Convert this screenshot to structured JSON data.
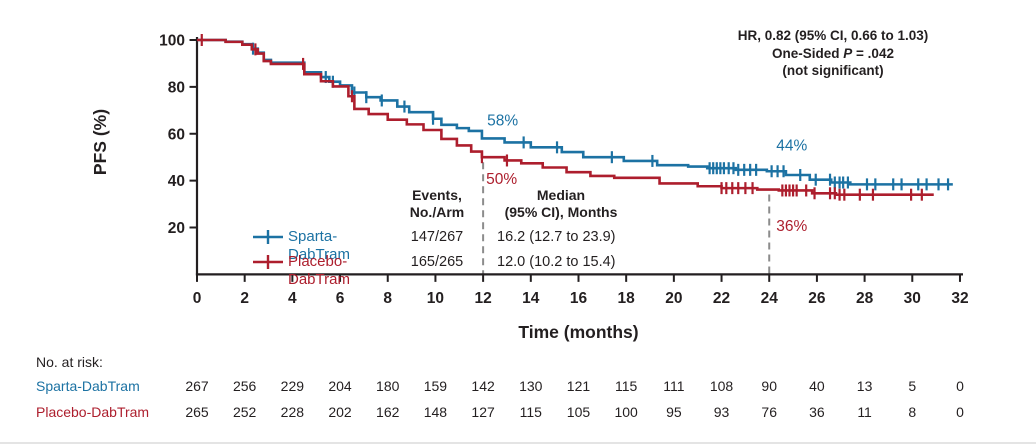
{
  "colors": {
    "sparta_blue": "#1c72a3",
    "placebo_red": "#ad1e2d",
    "dashed_gray": "#8c8c8c",
    "axis_text": "#231f20"
  },
  "figure": {
    "annotation": {
      "line1": "HR, 0.82 (95% CI, 0.66 to 1.03)",
      "line2_prefix": "One-Sided ",
      "line2_italic": "P",
      "line2_suffix": " = .042",
      "line3": "(not significant)"
    },
    "legend": {
      "events_header_line1": "Events,",
      "events_header_line2": "No./Arm",
      "median_header_line1": "Median",
      "median_header_line2": "(95% CI), Months",
      "rows": [
        {
          "name": "Sparta-DabTram",
          "events": "147/267",
          "median": "16.2 (12.7 to 23.9)"
        },
        {
          "name": "Placebo-DabTram",
          "events": "165/265",
          "median": "12.0 (10.2 to 15.4)"
        }
      ]
    },
    "risk_table": {
      "title": "No. at risk:",
      "rows": [
        {
          "name": "Sparta-DabTram",
          "values": [
            267,
            256,
            229,
            204,
            180,
            159,
            142,
            130,
            121,
            115,
            111,
            108,
            90,
            40,
            13,
            5,
            0
          ]
        },
        {
          "name": "Placebo-DabTram",
          "values": [
            265,
            252,
            228,
            202,
            162,
            148,
            127,
            115,
            105,
            100,
            95,
            93,
            76,
            36,
            11,
            8,
            0
          ]
        }
      ]
    }
  },
  "chart_data": {
    "type": "line",
    "subtype": "kaplan-meier-step",
    "xlabel": "Time (months)",
    "ylabel": "PFS (%)",
    "xlim": [
      0,
      32
    ],
    "ylim": [
      0,
      100
    ],
    "x_ticks": [
      0,
      2,
      4,
      6,
      8,
      10,
      12,
      14,
      16,
      18,
      20,
      22,
      24,
      26,
      28,
      30,
      32
    ],
    "y_ticks": [
      100,
      80,
      60,
      40,
      20
    ],
    "grid": false,
    "series": [
      {
        "name": "Sparta-DabTram",
        "color": "#1c72a3",
        "end_month": 31.7,
        "steps": [
          [
            0,
            100
          ],
          [
            1.2,
            99.3
          ],
          [
            1.9,
            98.2
          ],
          [
            2.3,
            96.3
          ],
          [
            2.55,
            94.6
          ],
          [
            2.8,
            91.5
          ],
          [
            3.1,
            90.3
          ],
          [
            4.5,
            86.2
          ],
          [
            5.2,
            84.2
          ],
          [
            5.55,
            82.2
          ],
          [
            6.0,
            80.6
          ],
          [
            6.5,
            77.6
          ],
          [
            7.1,
            75.6
          ],
          [
            7.7,
            74.2
          ],
          [
            8.4,
            71.6
          ],
          [
            8.9,
            69.2
          ],
          [
            9.9,
            66.4
          ],
          [
            10.25,
            63.8
          ],
          [
            10.9,
            62.4
          ],
          [
            11.4,
            61.2
          ],
          [
            11.95,
            58
          ],
          [
            12.9,
            56.3
          ],
          [
            14.0,
            54.2
          ],
          [
            15.3,
            52.2
          ],
          [
            16.2,
            50
          ],
          [
            17.9,
            48.4
          ],
          [
            19.3,
            46.6
          ],
          [
            20.6,
            46
          ],
          [
            21.4,
            45.3
          ],
          [
            22.6,
            44.6
          ],
          [
            23.9,
            44
          ],
          [
            24.7,
            42.4
          ],
          [
            25.7,
            40.4
          ],
          [
            26.6,
            39.2
          ],
          [
            27.4,
            38.4
          ]
        ],
        "censor_months": [
          2.35,
          5.4,
          5.7,
          6.6,
          7.1,
          7.75,
          8.7,
          9.9,
          13.7,
          15.1,
          17.4,
          19.1,
          21.5,
          21.65,
          21.8,
          21.95,
          22.1,
          22.3,
          22.5,
          22.7,
          22.95,
          23.2,
          23.45,
          24.1,
          24.35,
          24.6,
          25.3,
          25.95,
          26.55,
          26.75,
          26.95,
          27.1,
          27.3,
          28.1,
          28.45,
          29.2,
          29.55,
          30.25,
          30.6,
          31.1,
          31.5
        ]
      },
      {
        "name": "Placebo-DabTram",
        "color": "#ad1e2d",
        "end_month": 30.9,
        "steps": [
          [
            0,
            100
          ],
          [
            1.2,
            99.2
          ],
          [
            1.9,
            98
          ],
          [
            2.3,
            96
          ],
          [
            2.55,
            94.2
          ],
          [
            2.8,
            91
          ],
          [
            3.1,
            89.8
          ],
          [
            4.5,
            85.4
          ],
          [
            5.2,
            82.4
          ],
          [
            5.7,
            80.2
          ],
          [
            6.35,
            76
          ],
          [
            6.6,
            70.6
          ],
          [
            7.2,
            68.4
          ],
          [
            8.0,
            66
          ],
          [
            8.8,
            64
          ],
          [
            9.5,
            61.6
          ],
          [
            10.25,
            57.8
          ],
          [
            10.9,
            55
          ],
          [
            11.5,
            52.4
          ],
          [
            11.95,
            50
          ],
          [
            12.9,
            48.6
          ],
          [
            13.6,
            47.4
          ],
          [
            14.5,
            45.6
          ],
          [
            15.5,
            43.6
          ],
          [
            16.5,
            42
          ],
          [
            17.5,
            41.2
          ],
          [
            19.4,
            38.8
          ],
          [
            21.0,
            37.6
          ],
          [
            22.0,
            36.8
          ],
          [
            23.5,
            36.2
          ],
          [
            24.4,
            35.8
          ],
          [
            25.8,
            34.6
          ],
          [
            26.8,
            34
          ]
        ],
        "censor_months": [
          0.2,
          2.45,
          4.45,
          6.5,
          11.95,
          13.0,
          22.0,
          22.2,
          22.45,
          22.7,
          23.0,
          23.3,
          24.55,
          24.7,
          24.85,
          25.0,
          25.15,
          25.55,
          25.9,
          26.55,
          26.75,
          26.95,
          27.15,
          27.8,
          28.35,
          29.95,
          30.4
        ]
      }
    ],
    "dashed_markers": [
      {
        "month": 12
      },
      {
        "month": 24
      }
    ],
    "milestones": [
      {
        "text": "58%",
        "series": 0,
        "month": 12,
        "value": 58
      },
      {
        "text": "50%",
        "series": 1,
        "month": 12,
        "value": 50
      },
      {
        "text": "44%",
        "series": 0,
        "month": 24,
        "value": 44
      },
      {
        "text": "36%",
        "series": 1,
        "month": 24,
        "value": 36
      }
    ],
    "annotations": [
      "HR, 0.82 (95% CI, 0.66 to 1.03)",
      "One-Sided P = .042",
      "(not significant)"
    ]
  }
}
